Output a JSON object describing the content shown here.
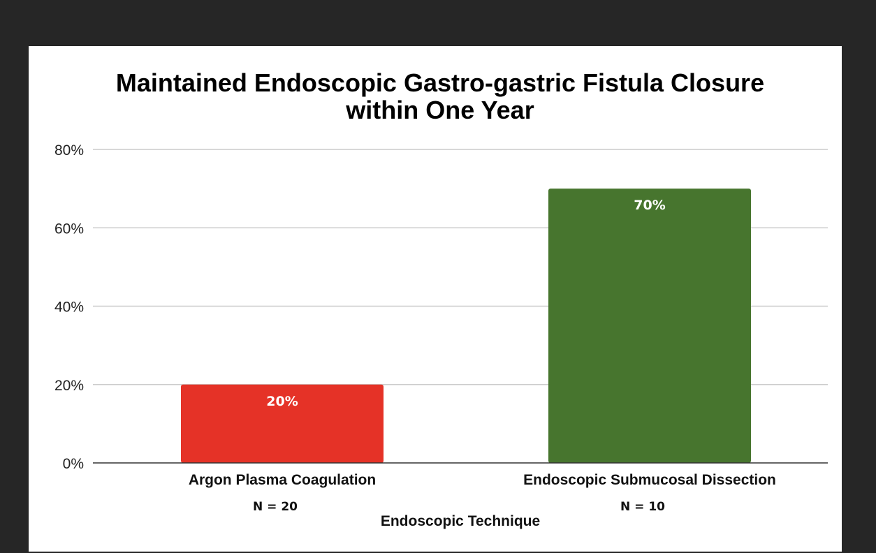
{
  "chart_data": {
    "type": "bar",
    "title_lines": [
      "Maintained Endoscopic Gastro-gastric Fistula Closure",
      "within One Year"
    ],
    "xlabel": "Endoscopic Technique",
    "ylabel": "",
    "categories": [
      "Argon Plasma Coagulation",
      "Endoscopic Submucosal Dissection"
    ],
    "sample_sizes": [
      "N = 20",
      "N = 10"
    ],
    "values": [
      20,
      70
    ],
    "value_labels": [
      "20%",
      "70%"
    ],
    "bar_colors": [
      "#e53227",
      "#47752e"
    ],
    "ylim": [
      0,
      80
    ],
    "yticks": [
      0,
      20,
      40,
      60,
      80
    ],
    "ytick_labels": [
      "0%",
      "20%",
      "40%",
      "60%",
      "80%"
    ],
    "grid": true,
    "legend": "none"
  }
}
